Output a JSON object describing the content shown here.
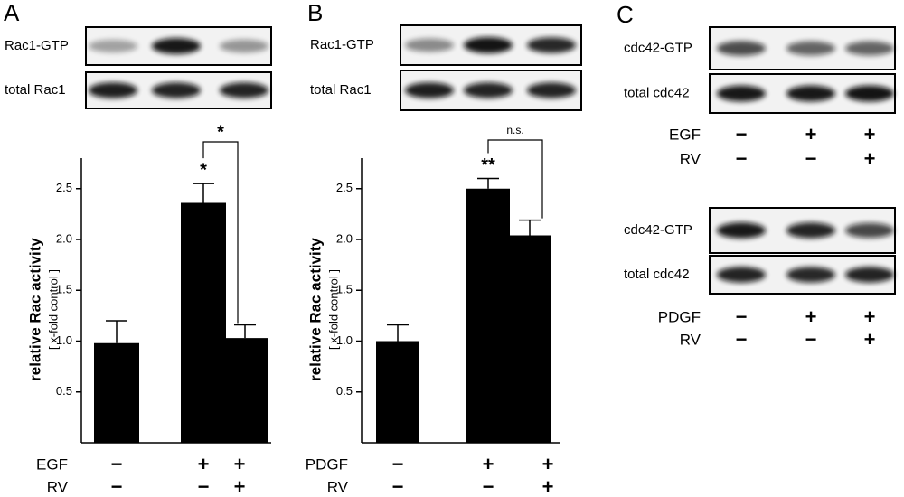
{
  "panel_labels": [
    "A",
    "B",
    "C"
  ],
  "blots": [
    {
      "rows": [
        "Rac1-GTP",
        "total Rac1"
      ]
    },
    {
      "rows": [
        "Rac1-GTP",
        "total Rac1"
      ]
    },
    {
      "rows": [
        "cdc42-GTP",
        "total cdc42"
      ],
      "conditions": [
        {
          "name": "EGF",
          "signs": [
            "−",
            "+",
            "+"
          ]
        },
        {
          "name": "RV",
          "signs": [
            "−",
            "−",
            "+"
          ]
        }
      ]
    },
    {
      "rows": [
        "cdc42-GTP",
        "total cdc42"
      ],
      "conditions": [
        {
          "name": "PDGF",
          "signs": [
            "−",
            "+",
            "+"
          ]
        },
        {
          "name": "RV",
          "signs": [
            "−",
            "−",
            "+"
          ]
        }
      ]
    }
  ],
  "chart_data": [
    {
      "type": "bar",
      "ylabel": "relative Rac activity",
      "ysublabel": "[ x-fold control ]",
      "values": [
        0.98,
        2.36,
        1.03
      ],
      "errors": [
        0.22,
        0.19,
        0.13
      ],
      "color": "#000000",
      "ylim": [
        0,
        2.8
      ],
      "yticks": [
        0.5,
        {
          "value": 1,
          "label": "1.0"
        },
        1.5,
        {
          "value": 2,
          "label": "2.0"
        },
        2.5
      ],
      "conditions": [
        {
          "name": "EGF",
          "signs": [
            "−",
            "+",
            "+"
          ]
        },
        {
          "name": "RV",
          "signs": [
            "−",
            "−",
            "+"
          ]
        }
      ],
      "significance": {
        "bar": "*",
        "bracket": "*"
      }
    },
    {
      "type": "bar",
      "ylabel": "relative Rac activity",
      "ysublabel": "[ x-fold control ]",
      "values": [
        1.0,
        2.5,
        2.04
      ],
      "errors": [
        0.16,
        0.1,
        0.15
      ],
      "color": "#000000",
      "ylim": [
        0,
        2.8
      ],
      "yticks": [
        0.5,
        {
          "value": 1,
          "label": "1.0"
        },
        1.5,
        {
          "value": 2,
          "label": "2.0"
        },
        2.5
      ],
      "conditions": [
        {
          "name": "PDGF",
          "signs": [
            "−",
            "+",
            "+"
          ]
        },
        {
          "name": "RV",
          "signs": [
            "−",
            "−",
            "+"
          ]
        }
      ],
      "significance": {
        "bar": "**",
        "bracket": "n.s."
      }
    }
  ]
}
